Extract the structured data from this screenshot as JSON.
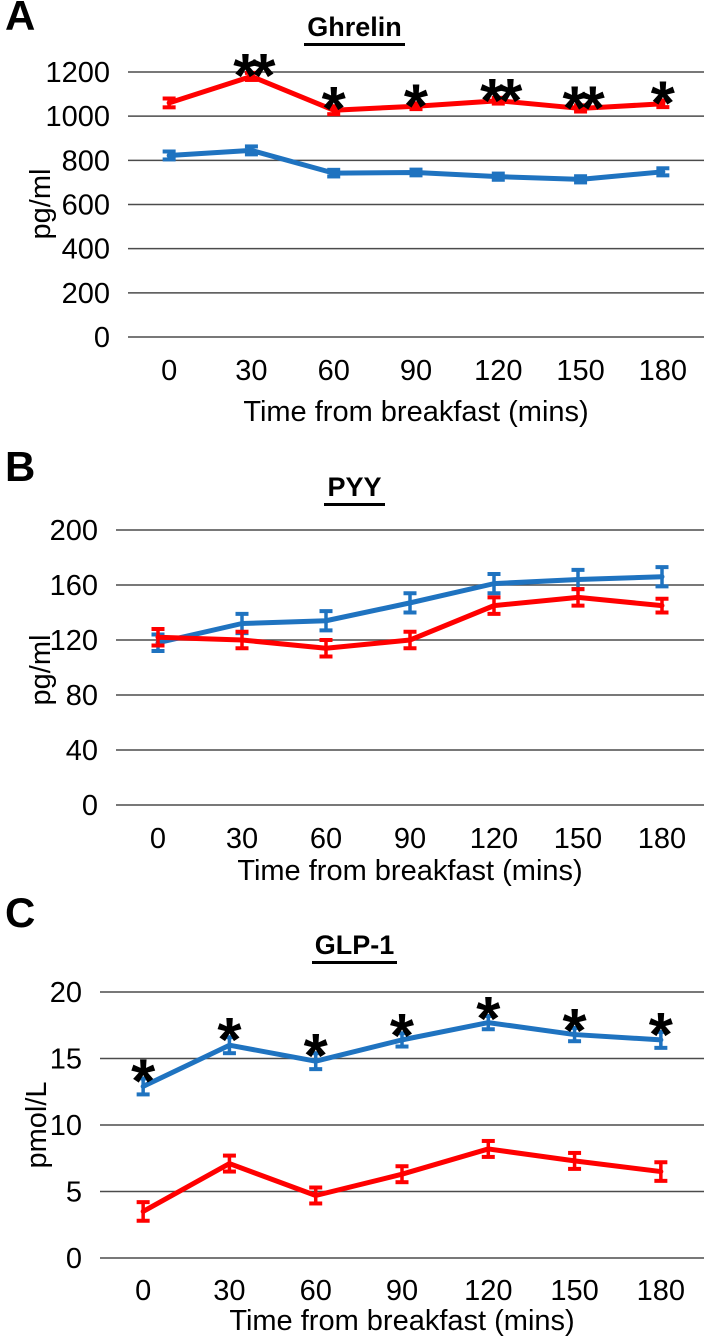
{
  "figure": {
    "background": "#ffffff",
    "text_color": "#000000",
    "grid_color": "#4b4b4b"
  },
  "chart_data": [
    {
      "panel_letter": "A",
      "type": "line",
      "title": "Ghrelin",
      "xlabel": "Time from breakfast (mins)",
      "ylabel": "pg/ml",
      "x": [
        0,
        30,
        60,
        90,
        120,
        150,
        180
      ],
      "x_tick_labels": [
        "0",
        "30",
        "60",
        "90",
        "120",
        "150",
        "180"
      ],
      "ylim": [
        0,
        1200
      ],
      "yticks": [
        0,
        200,
        400,
        600,
        800,
        1000,
        1200
      ],
      "grid": true,
      "legend": "none",
      "series": [
        {
          "name": "blue",
          "color": "#1F73C0",
          "values": [
            822,
            845,
            742,
            745,
            726,
            714,
            748
          ],
          "errors": [
            18,
            18,
            15,
            13,
            14,
            14,
            16
          ]
        },
        {
          "name": "red",
          "color": "#FF0000",
          "values": [
            1060,
            1180,
            1027,
            1045,
            1070,
            1035,
            1056
          ],
          "errors": [
            20,
            16,
            18,
            13,
            13,
            14,
            15
          ]
        }
      ],
      "annotations": [
        {
          "x": 30,
          "label": "**",
          "series": "red"
        },
        {
          "x": 60,
          "label": "*",
          "series": "red"
        },
        {
          "x": 90,
          "label": "*",
          "series": "red"
        },
        {
          "x": 120,
          "label": "**",
          "series": "red"
        },
        {
          "x": 150,
          "label": "**",
          "series": "red"
        },
        {
          "x": 180,
          "label": "*",
          "series": "red"
        }
      ]
    },
    {
      "panel_letter": "B",
      "type": "line",
      "title": "PYY",
      "xlabel": "Time from breakfast (mins)",
      "ylabel": "pg/ml",
      "x": [
        0,
        30,
        60,
        90,
        120,
        150,
        180
      ],
      "x_tick_labels": [
        "0",
        "30",
        "60",
        "90",
        "120",
        "150",
        "180"
      ],
      "ylim": [
        0,
        200
      ],
      "yticks": [
        0,
        40,
        80,
        120,
        160,
        200
      ],
      "grid": true,
      "legend": "none",
      "series": [
        {
          "name": "blue",
          "color": "#1F73C0",
          "values": [
            118,
            132,
            134,
            147,
            161,
            164,
            166
          ],
          "errors": [
            6,
            7,
            7,
            7,
            7,
            7,
            7
          ]
        },
        {
          "name": "red",
          "color": "#FF0000",
          "values": [
            122,
            120,
            114,
            120,
            145,
            151,
            145
          ],
          "errors": [
            6,
            6,
            6,
            6,
            6,
            6,
            5
          ]
        }
      ],
      "annotations": []
    },
    {
      "panel_letter": "C",
      "type": "line",
      "title": "GLP-1",
      "xlabel": "Time from breakfast (mins)",
      "ylabel": "pmol/L",
      "x": [
        0,
        30,
        60,
        90,
        120,
        150,
        180
      ],
      "x_tick_labels": [
        "0",
        "30",
        "60",
        "90",
        "120",
        "150",
        "180"
      ],
      "ylim": [
        0,
        20
      ],
      "yticks": [
        0,
        5,
        10,
        15,
        20
      ],
      "grid": true,
      "legend": "none",
      "series": [
        {
          "name": "blue",
          "color": "#1F73C0",
          "values": [
            12.9,
            16.0,
            14.8,
            16.4,
            17.7,
            16.8,
            16.4
          ],
          "errors": [
            0.6,
            0.6,
            0.6,
            0.5,
            0.5,
            0.5,
            0.6
          ]
        },
        {
          "name": "red",
          "color": "#FF0000",
          "values": [
            3.5,
            7.1,
            4.7,
            6.3,
            8.2,
            7.3,
            6.5
          ],
          "errors": [
            0.7,
            0.6,
            0.6,
            0.6,
            0.6,
            0.6,
            0.7
          ]
        }
      ],
      "annotations": [
        {
          "x": 0,
          "label": "*",
          "series": "blue"
        },
        {
          "x": 30,
          "label": "*",
          "series": "blue"
        },
        {
          "x": 60,
          "label": "*",
          "series": "blue"
        },
        {
          "x": 90,
          "label": "*",
          "series": "blue"
        },
        {
          "x": 120,
          "label": "*",
          "series": "blue"
        },
        {
          "x": 150,
          "label": "*",
          "series": "blue"
        },
        {
          "x": 180,
          "label": "*",
          "series": "blue"
        }
      ]
    }
  ]
}
